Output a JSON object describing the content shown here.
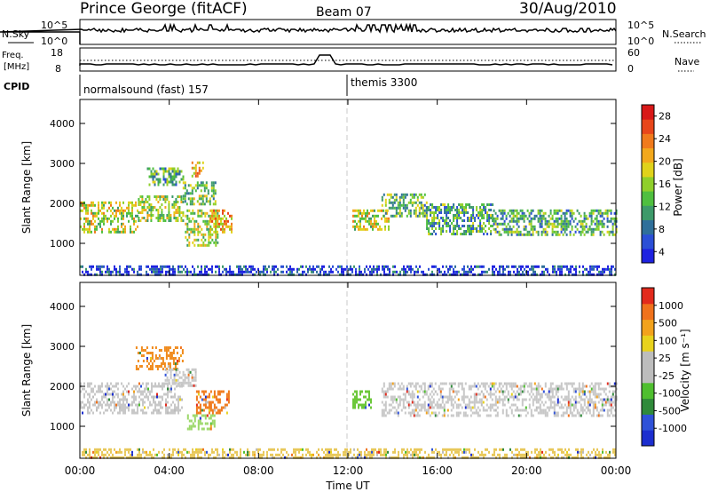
{
  "header": {
    "station": "Prince George (fitACF)",
    "beam": "Beam 07",
    "date": "30/Aug/2010"
  },
  "top_panels": {
    "nsky_label": "N.Sky",
    "nsky_ticks": [
      "10^5",
      "10^0"
    ],
    "nsearch_label": "N.Search",
    "nsearch_ticks": [
      "10^5",
      "10^0"
    ],
    "freq_label_1": "Freq.",
    "freq_label_2": "[MHz]",
    "freq_ticks": [
      "18",
      "8"
    ],
    "nave_label": "Nave",
    "nave_ticks": [
      "60",
      "0"
    ],
    "cpid_label": "CPID",
    "cpid_segments": [
      {
        "name": "normalsound (fast) 157",
        "start_hour": 0
      },
      {
        "name": "themis 3300",
        "start_hour": 12
      }
    ]
  },
  "chart_data": [
    {
      "type": "heatmap",
      "title": "",
      "quantity": "Power [dB]",
      "xlabel": "Time UT",
      "ylabel": "Slant Range [km]",
      "xlim": [
        0,
        24
      ],
      "ylim": [
        200,
        4600
      ],
      "yticks": [
        "1000",
        "2000",
        "3000",
        "4000"
      ],
      "xticks": [
        "00:00",
        "04:00",
        "08:00",
        "12:00",
        "16:00",
        "20:00",
        "00:00"
      ],
      "colorbar": {
        "label": "Power [dB]",
        "tick_labels": [
          "4",
          "8",
          "12",
          "16",
          "20",
          "24",
          "28"
        ],
        "colors": [
          "#1e22e0",
          "#2b4fd6",
          "#2f6f9a",
          "#3d9a6a",
          "#4fbf3f",
          "#8fcf2a",
          "#e0d21a",
          "#f2a81c",
          "#f07a1c",
          "#e8461a",
          "#d81818"
        ]
      },
      "echo_regions": [
        {
          "t0": 0.0,
          "t1": 2.6,
          "r0": 1300,
          "r1": 2050,
          "level": 0.55
        },
        {
          "t0": 2.6,
          "t1": 4.6,
          "r0": 1550,
          "r1": 2200,
          "level": 0.5
        },
        {
          "t0": 3.0,
          "t1": 4.6,
          "r0": 2450,
          "r1": 2900,
          "level": 0.35
        },
        {
          "t0": 5.0,
          "t1": 5.5,
          "r0": 2650,
          "r1": 3050,
          "level": 0.65
        },
        {
          "t0": 4.6,
          "t1": 6.1,
          "r0": 1950,
          "r1": 2550,
          "level": 0.45
        },
        {
          "t0": 4.7,
          "t1": 6.2,
          "r0": 950,
          "r1": 1850,
          "level": 0.5
        },
        {
          "t0": 5.8,
          "t1": 6.8,
          "r0": 1300,
          "r1": 1850,
          "level": 0.7
        },
        {
          "t0": 12.2,
          "t1": 13.8,
          "r0": 1350,
          "r1": 1850,
          "level": 0.55
        },
        {
          "t0": 13.5,
          "t1": 15.5,
          "r0": 1700,
          "r1": 2250,
          "level": 0.4
        },
        {
          "t0": 15.5,
          "t1": 18.5,
          "r0": 1250,
          "r1": 2000,
          "level": 0.35
        },
        {
          "t0": 18.5,
          "t1": 24.0,
          "r0": 1200,
          "r1": 1850,
          "level": 0.35
        },
        {
          "t0": 0.0,
          "t1": 24.0,
          "r0": 200,
          "r1": 450,
          "level": 0.12
        }
      ]
    },
    {
      "type": "heatmap",
      "title": "",
      "quantity": "Velocity [m s^-1]",
      "xlabel": "Time UT",
      "ylabel": "Slant Range [km]",
      "xlim": [
        0,
        24
      ],
      "ylim": [
        200,
        4600
      ],
      "yticks": [
        "1000",
        "2000",
        "3000",
        "4000"
      ],
      "xticks": [
        "00:00",
        "04:00",
        "08:00",
        "12:00",
        "16:00",
        "20:00",
        "00:00"
      ],
      "colorbar": {
        "label": "Velocity [m s⁻¹]",
        "tick_labels": [
          "1000",
          "500",
          "100",
          "25",
          "-25",
          "-100",
          "-500",
          "-1000"
        ],
        "colors": [
          "#1c2ecf",
          "#2f52d8",
          "#2f8a3a",
          "#4fbf2f",
          "#bdbdbd",
          "#bdbdbd",
          "#e8d21c",
          "#f2a21c",
          "#f0721c",
          "#e22a1c"
        ]
      },
      "echo_regions": [
        {
          "t0": 0.0,
          "t1": 4.6,
          "r0": 1350,
          "r1": 2100,
          "color": "#c8c8c8"
        },
        {
          "t0": 2.5,
          "t1": 4.6,
          "r0": 2450,
          "r1": 3000,
          "color": "#f08a1c"
        },
        {
          "t0": 3.8,
          "t1": 5.2,
          "r0": 2000,
          "r1": 2450,
          "color": "#c8c8c8"
        },
        {
          "t0": 4.8,
          "t1": 6.0,
          "r0": 900,
          "r1": 1300,
          "color": "#9cd86a"
        },
        {
          "t0": 5.2,
          "t1": 6.7,
          "r0": 1350,
          "r1": 1900,
          "color": "#f07a1c"
        },
        {
          "t0": 12.2,
          "t1": 13.0,
          "r0": 1450,
          "r1": 1900,
          "color": "#6cc83a"
        },
        {
          "t0": 13.5,
          "t1": 24.0,
          "r0": 1250,
          "r1": 2100,
          "color": "#c8c8c8"
        },
        {
          "t0": 0.0,
          "t1": 24.0,
          "r0": 200,
          "r1": 450,
          "color": "#e8c85a"
        }
      ]
    }
  ]
}
